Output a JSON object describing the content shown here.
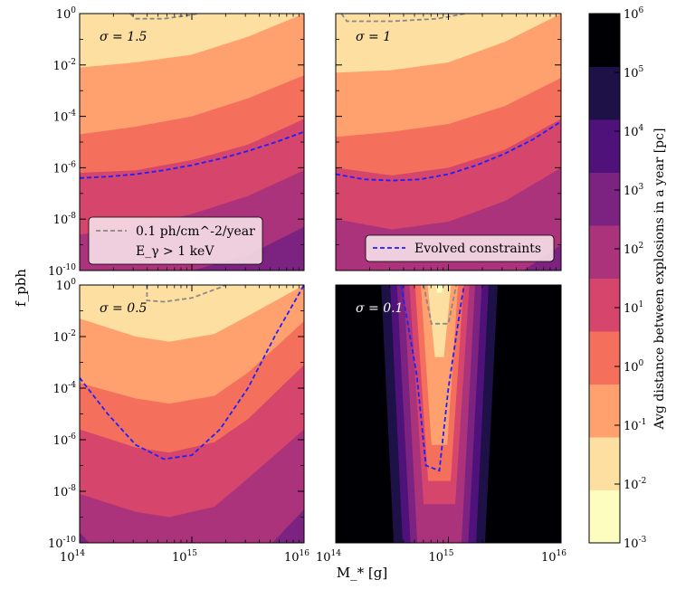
{
  "figure": {
    "xlabel": "M_* [g]",
    "ylabel": "f_pbh",
    "colorbar_label": "Avg distance between explosions in a year [pc]"
  },
  "chart_data": {
    "type": "heatmap",
    "x_scale": "log",
    "y_scale": "log",
    "xlim": [
      100000000000000.0,
      1e+16
    ],
    "ylim": [
      1e-10,
      1
    ],
    "x_ticks": [
      {
        "exp": 14
      },
      {
        "exp": 15
      },
      {
        "exp": 16
      }
    ],
    "y_ticks": [
      {
        "exp": 0
      },
      {
        "exp": -2
      },
      {
        "exp": -4
      },
      {
        "exp": -6
      },
      {
        "exp": -8
      },
      {
        "exp": -10
      }
    ],
    "colorbar": {
      "scale": "log",
      "range": [
        0.001,
        1000000
      ],
      "levels_exp": [
        -3,
        -2,
        -1,
        0,
        1,
        2,
        3,
        4,
        5,
        6
      ],
      "colors": [
        "#fcfdbf",
        "#fde0a1",
        "#fea16e",
        "#f4705c",
        "#d6456c",
        "#ab337c",
        "#7c2382",
        "#4f127b",
        "#1d1147",
        "#000004"
      ]
    },
    "legend": [
      {
        "label": "0.1 ph/cm^-2/year",
        "label2": "E_γ > 1 keV",
        "color": "#888888",
        "style": "dashed",
        "placement": "lower-left of top-left panel"
      },
      {
        "label": "Evolved constraints",
        "color": "#1f1fff",
        "style": "dashed",
        "placement": "lower-right of top-right panel"
      }
    ],
    "panels": [
      {
        "sigma_label": "σ = 1.5",
        "band_boundaries": [
          {
            "boundary": "10^-1",
            "points": [
              [
                14,
                -2.1
              ],
              [
                14.5,
                -1.9
              ],
              [
                15,
                -1.6
              ],
              [
                15.5,
                -0.9
              ],
              [
                16,
                0
              ]
            ]
          },
          {
            "boundary": "10^0",
            "points": [
              [
                14,
                -4.7
              ],
              [
                14.5,
                -4.4
              ],
              [
                15,
                -4.0
              ],
              [
                15.5,
                -3.3
              ],
              [
                16,
                -2.4
              ]
            ]
          },
          {
            "boundary": "10^1",
            "points": [
              [
                14,
                -6.2
              ],
              [
                14.5,
                -6.1
              ],
              [
                15,
                -5.7
              ],
              [
                15.5,
                -5.1
              ],
              [
                16,
                -4.1
              ]
            ]
          },
          {
            "boundary": "10^2",
            "points": [
              [
                14,
                -8.6
              ],
              [
                14.5,
                -8.3
              ],
              [
                15,
                -7.8
              ],
              [
                15.5,
                -7.1
              ],
              [
                16,
                -6.1
              ]
            ]
          },
          {
            "boundary": "10^3",
            "points": [
              [
                14,
                -10.5
              ],
              [
                14.5,
                -10.4
              ],
              [
                15,
                -10.0
              ],
              [
                15.5,
                -9.4
              ],
              [
                16,
                -8.3
              ]
            ]
          }
        ],
        "photon_line": [
          [
            14.45,
            0
          ],
          [
            14.5,
            -0.2
          ],
          [
            14.75,
            -0.2
          ],
          [
            15.0,
            -0.05
          ],
          [
            15.05,
            0
          ]
        ],
        "evolved_line": [
          [
            14,
            -6.4
          ],
          [
            14.25,
            -6.35
          ],
          [
            14.5,
            -6.25
          ],
          [
            14.75,
            -6.1
          ],
          [
            15,
            -5.9
          ],
          [
            15.25,
            -5.65
          ],
          [
            15.5,
            -5.35
          ],
          [
            15.75,
            -5.0
          ],
          [
            16,
            -4.6
          ]
        ]
      },
      {
        "sigma_label": "σ = 1",
        "band_boundaries": [
          {
            "boundary": "10^-1",
            "points": [
              [
                14,
                -2.3
              ],
              [
                14.5,
                -2.2
              ],
              [
                15,
                -1.9
              ],
              [
                15.5,
                -1.1
              ],
              [
                16,
                0
              ]
            ]
          },
          {
            "boundary": "10^0",
            "points": [
              [
                14,
                -4.8
              ],
              [
                14.5,
                -4.6
              ],
              [
                15,
                -4.3
              ],
              [
                15.5,
                -3.6
              ],
              [
                16,
                -2.5
              ]
            ]
          },
          {
            "boundary": "10^1",
            "points": [
              [
                14,
                -6.0
              ],
              [
                14.5,
                -6.3
              ],
              [
                15,
                -6.0
              ],
              [
                15.5,
                -5.3
              ],
              [
                16,
                -4.1
              ]
            ]
          },
          {
            "boundary": "10^2",
            "points": [
              [
                14,
                -8.0
              ],
              [
                14.5,
                -8.4
              ],
              [
                15,
                -8.1
              ],
              [
                15.5,
                -7.3
              ],
              [
                16,
                -6.0
              ]
            ]
          },
          {
            "boundary": "10^3",
            "points": [
              [
                14,
                -10.5
              ],
              [
                14.5,
                -11
              ],
              [
                15,
                -11
              ],
              [
                15.5,
                -10.5
              ],
              [
                16,
                -9.0
              ]
            ]
          }
        ],
        "photon_line": [
          [
            14.05,
            0
          ],
          [
            14.1,
            -0.3
          ],
          [
            14.5,
            -0.3
          ],
          [
            14.9,
            -0.2
          ],
          [
            15.15,
            0
          ]
        ],
        "evolved_line": [
          [
            14,
            -6.25
          ],
          [
            14.25,
            -6.45
          ],
          [
            14.5,
            -6.5
          ],
          [
            14.75,
            -6.45
          ],
          [
            15,
            -6.25
          ],
          [
            15.25,
            -5.9
          ],
          [
            15.5,
            -5.45
          ],
          [
            15.75,
            -4.9
          ],
          [
            16,
            -4.2
          ]
        ]
      },
      {
        "sigma_label": "σ = 0.5",
        "band_boundaries": [
          {
            "boundary": "10^-1",
            "points": [
              [
                14,
                -1.3
              ],
              [
                14.5,
                -2.0
              ],
              [
                14.8,
                -2.2
              ],
              [
                15.2,
                -1.9
              ],
              [
                15.5,
                -1.2
              ],
              [
                16,
                0
              ]
            ]
          },
          {
            "boundary": "10^0",
            "points": [
              [
                14,
                -3.8
              ],
              [
                14.5,
                -4.4
              ],
              [
                14.8,
                -4.6
              ],
              [
                15.2,
                -4.3
              ],
              [
                15.5,
                -3.4
              ],
              [
                16,
                -1.4
              ]
            ]
          },
          {
            "boundary": "10^1",
            "points": [
              [
                14,
                -5.6
              ],
              [
                14.5,
                -6.3
              ],
              [
                14.8,
                -6.5
              ],
              [
                15.2,
                -6.1
              ],
              [
                15.5,
                -5.2
              ],
              [
                16,
                -3.1
              ]
            ]
          },
          {
            "boundary": "10^2",
            "points": [
              [
                14,
                -8.1
              ],
              [
                14.5,
                -8.8
              ],
              [
                14.8,
                -9.0
              ],
              [
                15.2,
                -8.6
              ],
              [
                15.5,
                -7.5
              ],
              [
                16,
                -5.6
              ]
            ]
          },
          {
            "boundary": "10^3",
            "points": [
              [
                14,
                -9.6
              ],
              [
                14.3,
                -11
              ],
              [
                15.5,
                -11
              ],
              [
                16,
                -8.7
              ]
            ]
          }
        ],
        "photon_line": [
          [
            14.6,
            0
          ],
          [
            14.6,
            -0.6
          ],
          [
            14.75,
            -0.65
          ],
          [
            15.0,
            -0.5
          ],
          [
            15.25,
            -0.1
          ],
          [
            15.3,
            0
          ]
        ],
        "evolved_line": [
          [
            14,
            -3.6
          ],
          [
            14.25,
            -5.0
          ],
          [
            14.5,
            -6.2
          ],
          [
            14.75,
            -6.75
          ],
          [
            15,
            -6.6
          ],
          [
            15.25,
            -5.6
          ],
          [
            15.5,
            -4.0
          ],
          [
            15.75,
            -1.9
          ],
          [
            16,
            0
          ]
        ]
      },
      {
        "sigma_label": "σ = 0.1",
        "valley_center_log10_M": 14.92,
        "photon_line": [
          [
            14.78,
            0
          ],
          [
            14.85,
            -1.5
          ],
          [
            15.0,
            -1.5
          ],
          [
            15.07,
            0
          ]
        ],
        "evolved_line": [
          [
            14.58,
            0
          ],
          [
            14.72,
            -3.5
          ],
          [
            14.8,
            -7.0
          ],
          [
            14.83,
            -7.05
          ],
          [
            14.92,
            -7.2
          ],
          [
            15.0,
            -4.0
          ],
          [
            15.12,
            -0.5
          ],
          [
            15.14,
            0
          ]
        ]
      }
    ]
  }
}
